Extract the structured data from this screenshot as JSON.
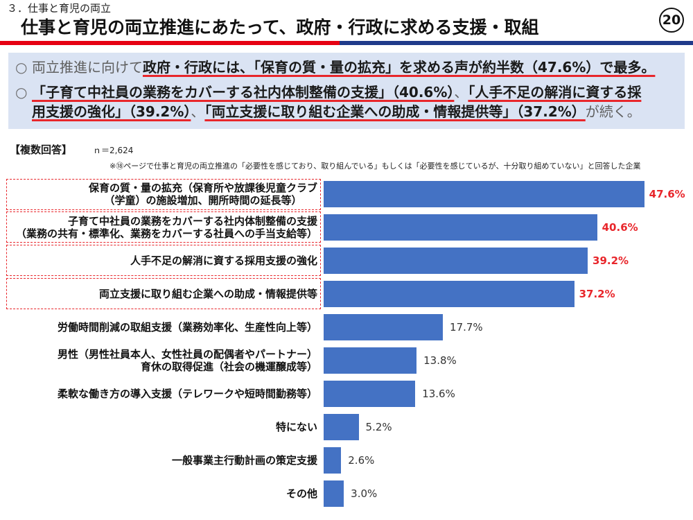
{
  "header": {
    "section": "３．仕事と育児の両立",
    "title": "仕事と育児の両立推進にあたって、政府・行政に求める支援・取組",
    "page_number": "20"
  },
  "summary": {
    "bullet1": {
      "mark": "○",
      "lead": "両立推進に向けて",
      "emphasis": "政府・行政には、「保育の質・量の拡充」を求める声が約半数（47.6%）で最多。"
    },
    "bullet2": {
      "mark": "○",
      "emphasis1": "「子育て中社員の業務をカバーする社内体制整備の支援」（40.6%）",
      "sep1": "、",
      "emphasis2_line1": "「人手不足の解消に資する採",
      "emphasis2_line2": "用支援の強化」（39.2%）",
      "sep2": "、",
      "emphasis3": "「両立支援に取り組む企業への助成・情報提供等」（37.2%）",
      "tail": "が続く。"
    }
  },
  "chart_header": {
    "answer_type": "【複数回答】",
    "sample_size": "ｎ＝2,624",
    "note": "※⑱ページで仕事と育児の両立推進の「必要性を感じており、取り組んでいる」もしくは「必要性を感じているが、十分取り組めていない」と回答した企業"
  },
  "colors": {
    "bar": "#4472c4",
    "highlight": "#e8262b",
    "summary_bg": "#dae3f3",
    "rule_red": "#e60012",
    "rule_navy": "#1f3a8a"
  },
  "chart_data": {
    "type": "bar",
    "categories": [
      "保育の質・量の拡充（保育所や放課後児童クラブ\n（学童）の施設増加、開所時間の延長等）",
      "子育て中社員の業務をカバーする社内体制整備の支援\n（業務の共有・標準化、業務をカバーする社員への手当支給等）",
      "人手不足の解消に資する採用支援の強化",
      "両立支援に取り組む企業への助成・情報提供等",
      "労働時間削減の取組支援（業務効率化、生産性向上等）",
      "男性（男性社員本人、女性社員の配偶者やパートナー）\n育休の取得促進（社会の機運醸成等）",
      "柔軟な働き方の導入支援（テレワークや短時間勤務等）",
      "特にない",
      "一般事業主行動計画の策定支援",
      "その他"
    ],
    "values": [
      47.6,
      40.6,
      39.2,
      37.2,
      17.7,
      13.8,
      13.6,
      5.2,
      2.6,
      3.0
    ],
    "data_labels": [
      "47.6%",
      "40.6%",
      "39.2%",
      "37.2%",
      "17.7%",
      "13.8%",
      "13.6%",
      "5.2%",
      "2.6%",
      "3.0%"
    ],
    "highlighted": [
      true,
      true,
      true,
      true,
      false,
      false,
      false,
      false,
      false,
      false
    ],
    "xlim": [
      0,
      50
    ],
    "grid": false
  }
}
